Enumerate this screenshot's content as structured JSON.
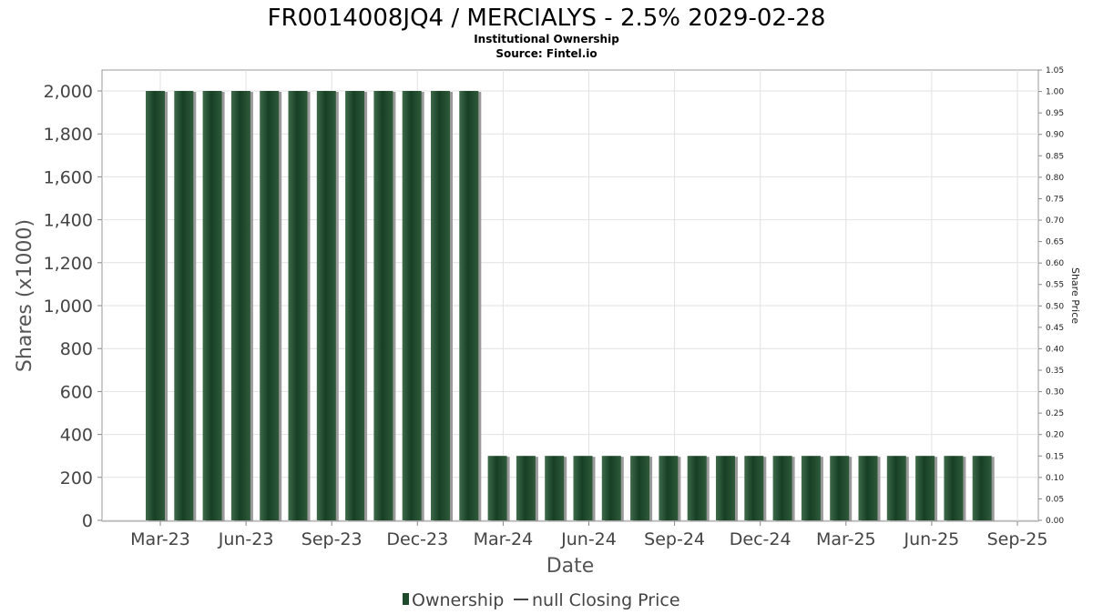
{
  "chart_data": {
    "type": "bar",
    "title": "FR0014008JQ4 / MERCIALYS - 2.5% 2029-02-28",
    "subtitle": "Institutional Ownership",
    "source": "Source: Fintel.io",
    "xlabel": "Date",
    "ylabel": "Shares (x1000)",
    "ylabel_right": "Share Price",
    "ylim": [
      0,
      2100
    ],
    "ylim_right": [
      0,
      1.05
    ],
    "yticks": [
      "0",
      "200",
      "400",
      "600",
      "800",
      "1,000",
      "1,200",
      "1,400",
      "1,600",
      "1,800",
      "2,000"
    ],
    "yticks_right": [
      "0.00",
      "0.05",
      "0.10",
      "0.15",
      "0.20",
      "0.25",
      "0.30",
      "0.35",
      "0.40",
      "0.45",
      "0.50",
      "0.55",
      "0.60",
      "0.65",
      "0.70",
      "0.75",
      "0.80",
      "0.85",
      "0.90",
      "0.95",
      "1.00",
      "1.05"
    ],
    "xticks": [
      "Mar-23",
      "Jun-23",
      "Sep-23",
      "Dec-23",
      "Mar-24",
      "Jun-24",
      "Sep-24",
      "Dec-24",
      "Mar-25",
      "Jun-25",
      "Sep-25"
    ],
    "grid": true,
    "legend_position": "bottom",
    "series": [
      {
        "name": "Ownership",
        "color": "#1e4a2c",
        "values": [
          2000,
          2000,
          2000,
          2000,
          2000,
          2000,
          2000,
          2000,
          2000,
          2000,
          2000,
          2000,
          300,
          300,
          300,
          300,
          300,
          300,
          300,
          300,
          300,
          300,
          300,
          300,
          300,
          300,
          300,
          300,
          300,
          300
        ]
      }
    ],
    "legend": [
      {
        "label": "Ownership",
        "kind": "bar"
      },
      {
        "label": "null Closing Price",
        "kind": "line"
      }
    ]
  }
}
